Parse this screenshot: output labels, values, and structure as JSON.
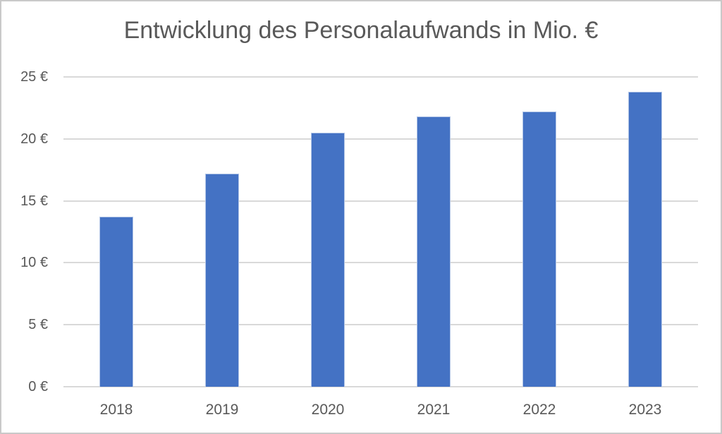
{
  "chart_data": {
    "type": "bar",
    "title": "Entwicklung des Personalaufwands in Mio. €",
    "categories": [
      "2018",
      "2019",
      "2020",
      "2021",
      "2022",
      "2023"
    ],
    "values": [
      13.7,
      17.2,
      20.5,
      21.8,
      22.2,
      23.8
    ],
    "series_name": "Personalaufwand in Mio. €",
    "xlabel": "",
    "ylabel": "",
    "ylim": [
      0,
      25
    ],
    "y_ticks": [
      {
        "value": 0,
        "label": "0 €"
      },
      {
        "value": 5,
        "label": "5 €"
      },
      {
        "value": 10,
        "label": "10 €"
      },
      {
        "value": 15,
        "label": "15 €"
      },
      {
        "value": 20,
        "label": "20 €"
      },
      {
        "value": 25,
        "label": "25 €"
      }
    ],
    "grid": true,
    "legend": false,
    "colors": {
      "bar_fill": "#4472c4",
      "bar_edge": "#b4c7e7",
      "gridline": "#d9d9d9",
      "text": "#595959",
      "frame_border": "#c9c9c9",
      "background": "#ffffff"
    }
  }
}
